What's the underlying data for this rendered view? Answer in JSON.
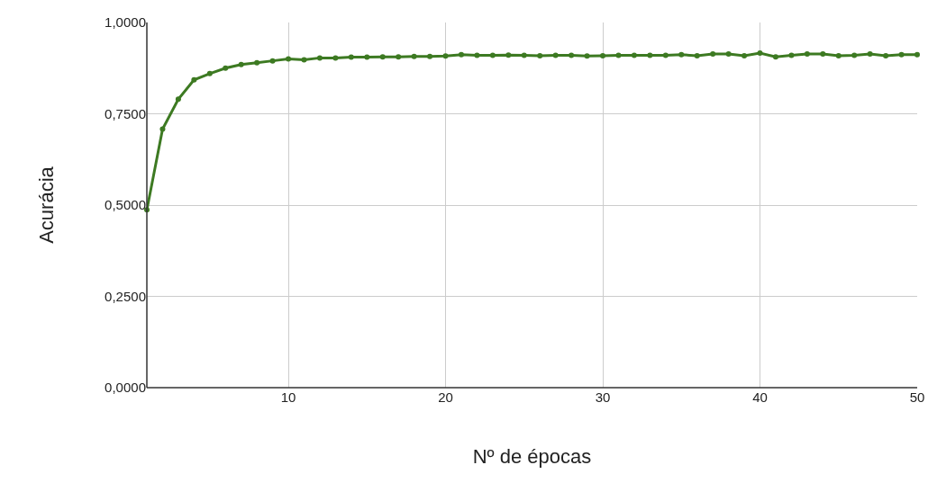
{
  "chart_data": {
    "type": "line",
    "xlabel": "Nº de épocas",
    "ylabel": "Acurácia",
    "x": [
      1,
      2,
      3,
      4,
      5,
      6,
      7,
      8,
      9,
      10,
      11,
      12,
      13,
      14,
      15,
      16,
      17,
      18,
      19,
      20,
      21,
      22,
      23,
      24,
      25,
      26,
      27,
      28,
      29,
      30,
      31,
      32,
      33,
      34,
      35,
      36,
      37,
      38,
      39,
      40,
      41,
      42,
      43,
      44,
      45,
      46,
      47,
      48,
      49,
      50
    ],
    "series": [
      {
        "color": "#3d7a22",
        "values": [
          0.487,
          0.708,
          0.79,
          0.843,
          0.86,
          0.875,
          0.885,
          0.89,
          0.895,
          0.9,
          0.898,
          0.903,
          0.903,
          0.905,
          0.905,
          0.906,
          0.906,
          0.907,
          0.907,
          0.908,
          0.912,
          0.91,
          0.91,
          0.911,
          0.91,
          0.909,
          0.91,
          0.91,
          0.908,
          0.909,
          0.91,
          0.91,
          0.91,
          0.91,
          0.912,
          0.909,
          0.914,
          0.914,
          0.909,
          0.916,
          0.906,
          0.91,
          0.914,
          0.914,
          0.909,
          0.91,
          0.914,
          0.909,
          0.912,
          0.912
        ]
      }
    ],
    "xlim": [
      1,
      50
    ],
    "xticks": [
      10,
      20,
      30,
      40,
      50
    ],
    "ylim": [
      0,
      1
    ],
    "yticks": [
      {
        "value": 0,
        "label": "0,0000"
      },
      {
        "value": 0.25,
        "label": "0,2500"
      },
      {
        "value": 0.5,
        "label": "0,5000"
      },
      {
        "value": 0.75,
        "label": "0,7500"
      },
      {
        "value": 1,
        "label": "1,0000"
      }
    ],
    "grid": true,
    "marker": "circle",
    "line_style": "solid"
  }
}
